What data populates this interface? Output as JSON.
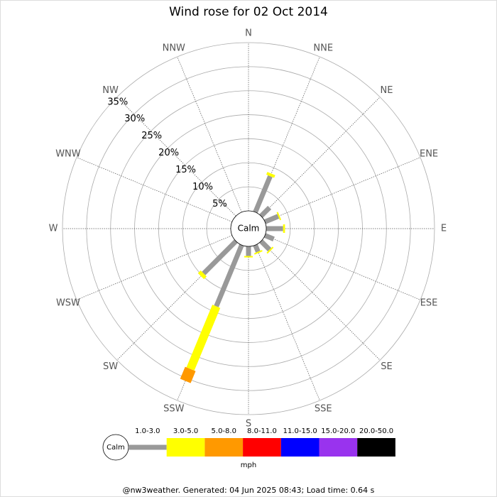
{
  "chart_data": {
    "type": "windrose",
    "title": "Wind rose for 02 Oct 2014",
    "directions": [
      "N",
      "NNE",
      "NE",
      "ENE",
      "E",
      "ESE",
      "SE",
      "SSE",
      "S",
      "SSW",
      "SW",
      "WSW",
      "W",
      "WNW",
      "NW",
      "NNW"
    ],
    "center_label": "Calm",
    "rlim": [
      0,
      35
    ],
    "rticks": [
      {
        "value": 5,
        "label": "5%"
      },
      {
        "value": 10,
        "label": "10%"
      },
      {
        "value": 15,
        "label": "15%"
      },
      {
        "value": 20,
        "label": "20%"
      },
      {
        "value": 25,
        "label": "25%"
      },
      {
        "value": 30,
        "label": "30%"
      },
      {
        "value": 35,
        "label": "35%"
      }
    ],
    "series": [
      {
        "name": "1.0-3.0",
        "color": "#999999",
        "values": [
          0,
          8.1,
          2.5,
          3,
          3.5,
          2,
          2.5,
          1.5,
          2,
          13.8,
          9.5,
          0,
          0,
          0,
          0,
          0
        ]
      },
      {
        "name": "3.0-5.0",
        "color": "#ffff00",
        "values": [
          0,
          0.6,
          0,
          0.3,
          0.4,
          0,
          0.3,
          0.3,
          0.3,
          14.1,
          0.8,
          0,
          0,
          0,
          0,
          0
        ]
      },
      {
        "name": "5.0-8.0",
        "color": "#ff9900",
        "values": [
          0,
          0,
          0,
          0,
          0,
          0,
          0,
          0,
          0,
          2.7,
          0,
          0,
          0,
          0,
          0,
          0
        ]
      },
      {
        "name": "8.0-11.0",
        "color": "#ff0000",
        "values": [
          0,
          0,
          0,
          0,
          0,
          0,
          0,
          0,
          0,
          0,
          0,
          0,
          0,
          0,
          0,
          0
        ]
      },
      {
        "name": "11.0-15.0",
        "color": "#0000ff",
        "values": [
          0,
          0,
          0,
          0,
          0,
          0,
          0,
          0,
          0,
          0,
          0,
          0,
          0,
          0,
          0,
          0
        ]
      },
      {
        "name": "15.0-20.0",
        "color": "#9933ee",
        "values": [
          0,
          0,
          0,
          0,
          0,
          0,
          0,
          0,
          0,
          0,
          0,
          0,
          0,
          0,
          0,
          0
        ]
      },
      {
        "name": "20.0-50.0",
        "color": "#000000",
        "values": [
          0,
          0,
          0,
          0,
          0,
          0,
          0,
          0,
          0,
          0,
          0,
          0,
          0,
          0,
          0,
          0
        ]
      }
    ],
    "legend_unit": "mph",
    "footer": "@nw3weather. Generated: 04 Jun 2025 08:43; Load time: 0.64 s"
  }
}
